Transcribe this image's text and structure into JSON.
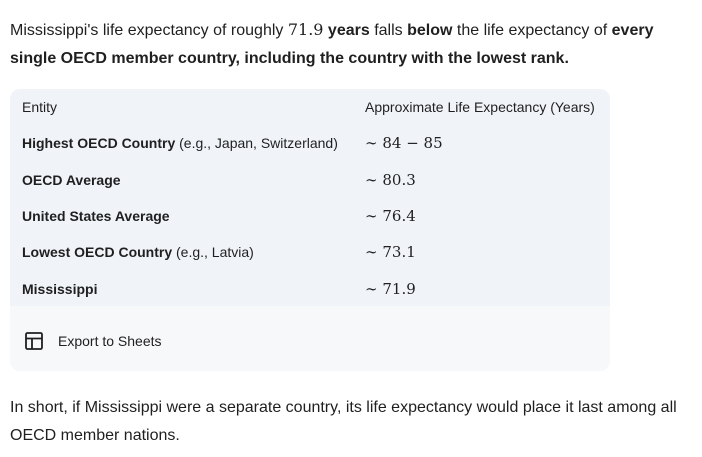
{
  "intro": {
    "part1": "Mississippi's life expectancy of roughly ",
    "value": "71.9",
    "part2": " ",
    "bold1": "years",
    "part3": " falls ",
    "bold2": "below",
    "part4": " the life expectancy of ",
    "bold3": "every single OECD member country, including the country with the lowest rank."
  },
  "table": {
    "headers": {
      "entity": "Entity",
      "life": "Approximate Life Expectancy (Years)"
    },
    "rows": [
      {
        "entity_bold": "Highest OECD Country",
        "entity_note": " (e.g., Japan, Switzerland)",
        "tilde": "∼",
        "value": "84 − 85"
      },
      {
        "entity_bold": "OECD Average",
        "entity_note": "",
        "tilde": "∼",
        "value": "80.3"
      },
      {
        "entity_bold": "United States Average",
        "entity_note": "",
        "tilde": "∼",
        "value": "76.4"
      },
      {
        "entity_bold": "Lowest OECD Country",
        "entity_note": " (e.g., Latvia)",
        "tilde": "∼",
        "value": "73.1"
      },
      {
        "entity_bold": "Mississippi",
        "entity_note": "",
        "tilde": "∼",
        "value": "71.9"
      }
    ]
  },
  "export": {
    "label": "Export to Sheets",
    "icon": "table-grid-icon"
  },
  "outro": {
    "text": "In short, if Mississippi were a separate country, its life expectancy would place it last among all OECD member nations."
  }
}
